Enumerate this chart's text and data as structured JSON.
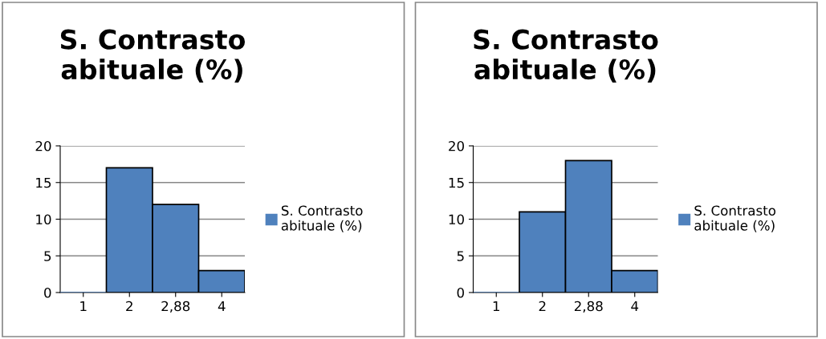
{
  "chart_data": [
    {
      "type": "bar",
      "title": "S. Contrasto abituale (%)",
      "categories": [
        "1",
        "2",
        "2,88",
        "4"
      ],
      "series": [
        {
          "name": "S. Contrasto abituale (%)",
          "color": "#4f81bd",
          "values": [
            0,
            17,
            12,
            3
          ]
        }
      ],
      "ylim": [
        0,
        20
      ],
      "yticks": [
        0,
        5,
        10,
        15,
        20
      ],
      "grid": "y",
      "legend": "right"
    },
    {
      "type": "bar",
      "title": "S. Contrasto abituale (%)",
      "categories": [
        "1",
        "2",
        "2,88",
        "4"
      ],
      "series": [
        {
          "name": "S. Contrasto abituale (%)",
          "color": "#4f81bd",
          "values": [
            0,
            11,
            18,
            3
          ]
        }
      ],
      "ylim": [
        0,
        20
      ],
      "yticks": [
        0,
        5,
        10,
        15,
        20
      ],
      "grid": "y",
      "legend": "right"
    }
  ]
}
